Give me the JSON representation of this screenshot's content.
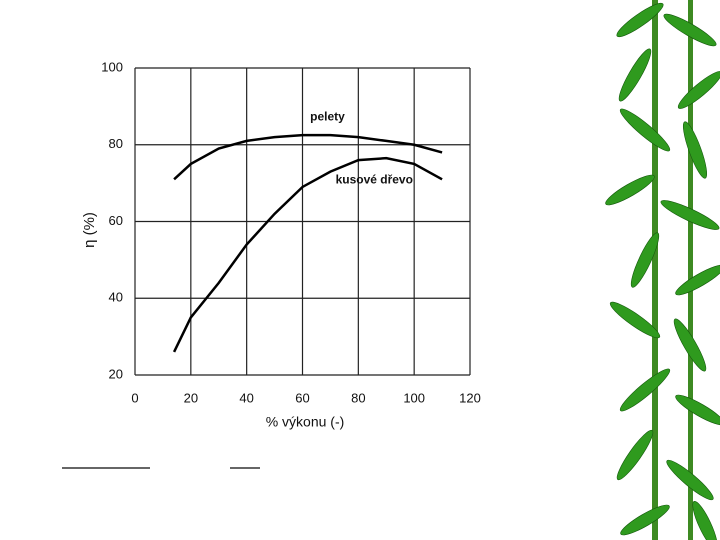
{
  "chart_data": {
    "type": "line",
    "x_label": "% výkonu (-)",
    "y_label": "η (%)",
    "x": [
      14,
      20,
      30,
      40,
      50,
      60,
      70,
      80,
      90,
      100,
      110
    ],
    "series": [
      {
        "name": "pelety",
        "color": "#000000",
        "values": [
          71,
          75,
          79,
          81,
          82,
          82.5,
          82.5,
          82,
          81,
          80,
          78
        ]
      },
      {
        "name": "kusové dřevo",
        "color": "#000000",
        "values": [
          26,
          35,
          44,
          54,
          62,
          69,
          73,
          76,
          76.5,
          75,
          71
        ]
      }
    ],
    "xlim": [
      0,
      120
    ],
    "xticks": [
      0,
      20,
      40,
      60,
      80,
      100,
      120
    ],
    "ylim": [
      20,
      100
    ],
    "yticks": [
      20,
      40,
      60,
      80,
      100
    ],
    "grid": true
  }
}
